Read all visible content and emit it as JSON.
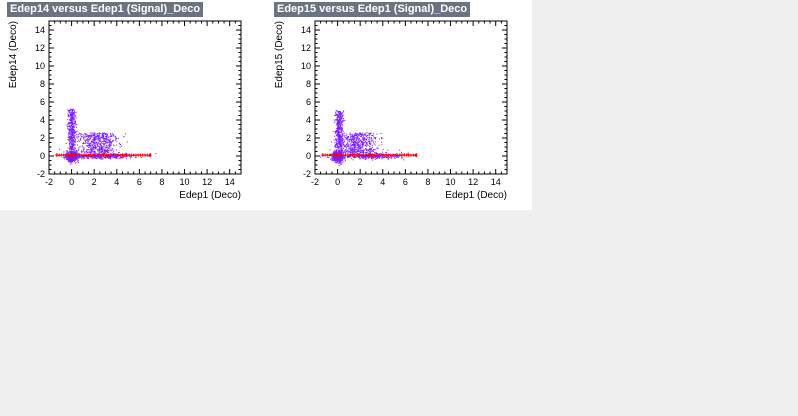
{
  "chart_data": [
    {
      "type": "scatter",
      "title": "Edep14 versus Edep1 (Signal)_Deco",
      "xlabel": "Edep1 (Deco)",
      "ylabel": "Edep14 (Deco)",
      "xlim": [
        -2,
        15
      ],
      "ylim": [
        -2,
        15
      ],
      "x_ticks": [
        -2,
        0,
        2,
        4,
        6,
        8,
        10,
        12,
        14
      ],
      "y_ticks": [
        -2,
        0,
        2,
        4,
        6,
        8,
        10,
        12,
        14
      ],
      "grid": false,
      "colors": {
        "density": "#7a1cff",
        "profile": "#ff0000"
      },
      "seed": 7,
      "profile": {
        "x_range": [
          -1.3,
          7.0
        ],
        "y_level": 0.1
      },
      "clusters": [
        {
          "cx": 0.0,
          "cy": 0.0,
          "sx": 0.25,
          "sy": 0.3,
          "n": 520
        },
        {
          "cx": 0.0,
          "cy": 3.0,
          "sx": 0.18,
          "sy": 1.5,
          "n": 420
        },
        {
          "cx": 2.3,
          "cy": 1.5,
          "sx": 0.9,
          "sy": 0.75,
          "n": 560
        },
        {
          "cx": 2.8,
          "cy": 0.05,
          "sx": 1.4,
          "sy": 0.15,
          "n": 420
        }
      ]
    },
    {
      "type": "scatter",
      "title": "Edep15 versus Edep1 (Signal)_Deco",
      "xlabel": "Edep1 (Deco)",
      "ylabel": "Edep15 (Deco)",
      "xlim": [
        -2,
        15
      ],
      "ylim": [
        -2,
        15
      ],
      "x_ticks": [
        -2,
        0,
        2,
        4,
        6,
        8,
        10,
        12,
        14
      ],
      "y_ticks": [
        -2,
        0,
        2,
        4,
        6,
        8,
        10,
        12,
        14
      ],
      "grid": false,
      "colors": {
        "density": "#7a1cff",
        "profile": "#ff0000"
      },
      "seed": 13,
      "profile": {
        "x_range": [
          -1.3,
          7.0
        ],
        "y_level": 0.1
      },
      "clusters": [
        {
          "cx": 0.0,
          "cy": 0.0,
          "sx": 0.25,
          "sy": 0.3,
          "n": 520
        },
        {
          "cx": 0.1,
          "cy": 3.0,
          "sx": 0.18,
          "sy": 1.4,
          "n": 400
        },
        {
          "cx": 1.8,
          "cy": 1.5,
          "sx": 0.9,
          "sy": 0.75,
          "n": 560
        },
        {
          "cx": 2.8,
          "cy": 0.05,
          "sx": 1.4,
          "sy": 0.15,
          "n": 420
        }
      ]
    }
  ]
}
